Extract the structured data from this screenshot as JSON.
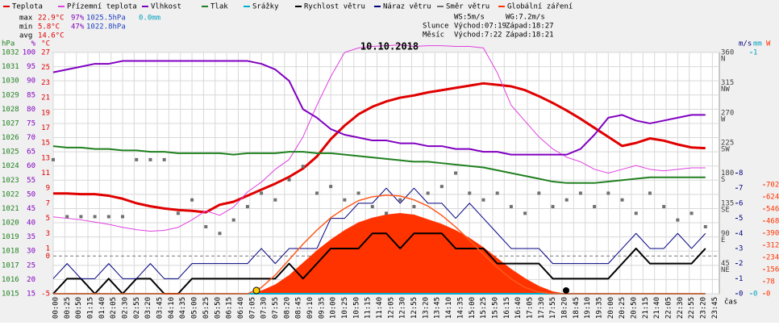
{
  "chart_data": {
    "type": "line",
    "title": "10.10.2018",
    "stats": [
      [
        "max",
        "22.9°C",
        "97%",
        "1025.5hPa",
        "0.0mm"
      ],
      [
        "min",
        "5.8°C",
        "47%",
        "1022.8hPa"
      ],
      [
        "avg",
        "14.6°C"
      ]
    ],
    "wind_stats": [
      "WS:5m/s",
      "WG:7.2m/s"
    ],
    "astro": [
      [
        "Slunce",
        "Východ:07:19",
        "Západ:18:27"
      ],
      [
        "Měsíc",
        "Východ:7:22",
        "Západ:18:21"
      ]
    ],
    "x_label": "čas",
    "xticks": [
      "00:00",
      "00:25",
      "00:50",
      "01:15",
      "01:40",
      "02:05",
      "02:30",
      "02:55",
      "03:20",
      "03:45",
      "04:10",
      "04:35",
      "05:00",
      "05:25",
      "05:50",
      "06:15",
      "06:40",
      "07:05",
      "07:30",
      "07:55",
      "08:20",
      "08:45",
      "09:10",
      "09:35",
      "10:00",
      "10:25",
      "10:50",
      "11:15",
      "11:40",
      "12:05",
      "12:30",
      "12:55",
      "13:20",
      "13:45",
      "14:10",
      "14:35",
      "15:00",
      "15:25",
      "15:50",
      "16:15",
      "16:40",
      "17:05",
      "17:30",
      "17:55",
      "18:20",
      "18:45",
      "19:10",
      "19:35",
      "20:00",
      "20:25",
      "20:50",
      "21:15",
      "21:40",
      "22:05",
      "22:30",
      "22:55",
      "23:20",
      "23:45"
    ],
    "x": [
      "00:00",
      "00:30",
      "01:00",
      "01:30",
      "02:00",
      "02:30",
      "03:00",
      "03:30",
      "04:00",
      "04:30",
      "05:00",
      "05:30",
      "06:00",
      "06:30",
      "07:00",
      "07:30",
      "08:00",
      "08:30",
      "09:00",
      "09:30",
      "10:00",
      "10:30",
      "11:00",
      "11:30",
      "12:00",
      "12:30",
      "13:00",
      "13:30",
      "14:00",
      "14:30",
      "15:00",
      "15:30",
      "16:00",
      "16:30",
      "17:00",
      "17:30",
      "18:00",
      "18:30",
      "19:00",
      "19:30",
      "20:00",
      "20:30",
      "21:00",
      "21:30",
      "22:00",
      "22:30",
      "23:00",
      "23:30"
    ],
    "grid": true,
    "axes": {
      "hPa": {
        "title": "hPa",
        "side": "left",
        "ylim": [
          1015,
          1032
        ],
        "yticks": [
          1032,
          1031,
          1030,
          1029,
          1028,
          1027,
          1026,
          1025,
          1024,
          1023,
          1022,
          1021,
          1020,
          1019,
          1018,
          1017,
          1016,
          1015
        ]
      },
      "pct": {
        "title": "%",
        "side": "left",
        "ylim": [
          15,
          100
        ],
        "yticks": [
          100,
          95,
          90,
          85,
          80,
          75,
          70,
          65,
          60,
          55,
          50,
          45,
          40,
          35,
          30,
          25,
          20,
          15
        ]
      },
      "degC": {
        "title": "°C",
        "side": "left",
        "ylim": [
          -5,
          27
        ],
        "yticks": [
          27,
          25,
          23,
          21,
          19,
          17,
          15,
          13,
          11,
          9,
          7,
          5,
          3,
          1,
          0,
          -5
        ]
      },
      "dir": {
        "side": "right",
        "ylim": [
          0,
          360
        ],
        "yticks": [
          360,
          315,
          270,
          225,
          180,
          135,
          90,
          45
        ],
        "compass": [
          "N",
          "NW",
          "W",
          "SW",
          "S",
          "SE",
          "E",
          "NE"
        ]
      },
      "ms": {
        "title": "m/s",
        "side": "right",
        "ylim": [
          0,
          16
        ],
        "yticks": [
          8,
          7,
          6,
          5,
          4,
          3,
          2,
          1,
          0
        ]
      },
      "mm": {
        "title": "mm",
        "side": "right",
        "ylim": [
          0,
          1
        ],
        "yticks": [
          1,
          0
        ]
      },
      "W": {
        "title": "W",
        "side": "right",
        "ylim": [
          0,
          1555
        ],
        "yticks": [
          702,
          624,
          546,
          468,
          390,
          312,
          234,
          156,
          78,
          0
        ]
      }
    },
    "series": [
      {
        "name": "Teplota",
        "color": "#e00000",
        "axis": "degC",
        "style": "line",
        "width": 3,
        "values": [
          8.3,
          8.3,
          8.2,
          8.2,
          8.0,
          7.6,
          7.0,
          6.6,
          6.3,
          6.1,
          6.0,
          5.8,
          6.8,
          7.2,
          8.0,
          8.8,
          9.6,
          10.5,
          11.6,
          13.2,
          15.5,
          17.3,
          18.8,
          19.8,
          20.5,
          21.0,
          21.3,
          21.7,
          22.0,
          22.3,
          22.6,
          22.9,
          22.7,
          22.5,
          22.0,
          21.2,
          20.3,
          19.3,
          18.2,
          17.0,
          15.8,
          14.6,
          15.0,
          15.6,
          15.3,
          14.8,
          14.4,
          14.3
        ]
      },
      {
        "name": "Přízemní teplota",
        "color": "#e040e0",
        "axis": "degC",
        "style": "line",
        "width": 1,
        "values": [
          5.2,
          5.0,
          4.8,
          4.5,
          4.2,
          3.8,
          3.5,
          3.3,
          3.4,
          3.8,
          4.8,
          6.0,
          5.4,
          6.5,
          8.5,
          9.8,
          11.5,
          12.8,
          15.8,
          20.0,
          23.8,
          27.0,
          27.6,
          27.8,
          27.9,
          28.0,
          27.8,
          27.9,
          27.9,
          27.8,
          27.8,
          27.6,
          24.3,
          20.0,
          17.9,
          15.8,
          14.2,
          13.1,
          12.5,
          11.5,
          11.0,
          11.5,
          12.0,
          11.5,
          11.3,
          11.5,
          11.7,
          11.7
        ]
      },
      {
        "name": "Vlhkost",
        "color": "#8000c0",
        "axis": "pct",
        "style": "line",
        "width": 2,
        "values": [
          93,
          94,
          95,
          96,
          96,
          97,
          97,
          97,
          97,
          97,
          97,
          97,
          97,
          97,
          97,
          96,
          94,
          90,
          80,
          77,
          73,
          71,
          70,
          69,
          69,
          68,
          68,
          67,
          67,
          66,
          66,
          65,
          65,
          64,
          64,
          64,
          64,
          64,
          66,
          71,
          77,
          78,
          76,
          75,
          76,
          77,
          78,
          78
        ]
      },
      {
        "name": "Tlak",
        "color": "#208020",
        "axis": "hPa",
        "style": "line",
        "width": 2,
        "values": [
          1025.4,
          1025.3,
          1025.3,
          1025.2,
          1025.2,
          1025.1,
          1025.1,
          1025.0,
          1025.0,
          1024.9,
          1024.9,
          1024.9,
          1024.9,
          1024.8,
          1024.9,
          1024.9,
          1024.9,
          1025.0,
          1025.0,
          1024.9,
          1024.9,
          1024.8,
          1024.7,
          1024.6,
          1024.5,
          1024.4,
          1024.3,
          1024.3,
          1024.2,
          1024.1,
          1024.0,
          1023.9,
          1023.7,
          1023.5,
          1023.3,
          1023.1,
          1022.9,
          1022.8,
          1022.8,
          1022.8,
          1022.9,
          1023.0,
          1023.1,
          1023.2,
          1023.2,
          1023.2,
          1023.2,
          1023.2
        ]
      },
      {
        "name": "Srážky",
        "color": "#00b0d0",
        "axis": "mm",
        "style": "line",
        "width": 2,
        "values": [
          0,
          0,
          0,
          0,
          0,
          0,
          0,
          0,
          0,
          0,
          0,
          0,
          0,
          0,
          0,
          0,
          0,
          0,
          0,
          0,
          0,
          0,
          0,
          0,
          0,
          0,
          0,
          0,
          0,
          0,
          0,
          0,
          0,
          0,
          0,
          0,
          0,
          0,
          0,
          0,
          0,
          0,
          0,
          0,
          0,
          0,
          0,
          0
        ]
      },
      {
        "name": "Rychlost větru",
        "color": "#000000",
        "axis": "ms",
        "style": "line",
        "width": 2,
        "values": [
          0,
          1,
          1,
          0,
          1,
          0,
          1,
          1,
          0,
          0,
          1,
          1,
          1,
          1,
          1,
          1,
          1,
          2,
          1,
          2,
          3,
          3,
          3,
          4,
          4,
          3,
          4,
          4,
          4,
          3,
          3,
          3,
          2,
          2,
          2,
          2,
          1,
          1,
          1,
          1,
          1,
          2,
          3,
          2,
          2,
          2,
          2,
          3
        ]
      },
      {
        "name": "Náraz větru",
        "color": "#000080",
        "axis": "ms",
        "style": "line",
        "width": 1,
        "values": [
          1,
          2,
          1,
          1,
          2,
          1,
          1,
          2,
          1,
          1,
          2,
          2,
          2,
          2,
          2,
          3,
          2,
          3,
          3,
          3,
          5,
          5,
          6,
          6,
          7,
          6,
          7,
          6,
          6,
          5,
          6,
          5,
          4,
          3,
          3,
          3,
          2,
          2,
          2,
          2,
          2,
          3,
          4,
          3,
          3,
          4,
          3,
          4
        ]
      },
      {
        "name": "Směr větru",
        "color": "#707070",
        "axis": "dir",
        "style": "points",
        "values": [
          200,
          115,
          115,
          115,
          115,
          115,
          200,
          200,
          200,
          120,
          140,
          100,
          90,
          110,
          130,
          150,
          140,
          170,
          190,
          150,
          160,
          140,
          150,
          130,
          120,
          140,
          130,
          150,
          160,
          180,
          150,
          140,
          150,
          130,
          120,
          150,
          130,
          140,
          150,
          130,
          150,
          140,
          120,
          150,
          130,
          110,
          120,
          100
        ]
      },
      {
        "name": "Globální záření",
        "color": "#ff3300",
        "axis": "W",
        "style": "area",
        "values": [
          0,
          0,
          0,
          0,
          0,
          0,
          0,
          0,
          0,
          0,
          0,
          0,
          0,
          0,
          0,
          20,
          60,
          120,
          200,
          280,
          350,
          410,
          460,
          490,
          510,
          520,
          510,
          480,
          450,
          410,
          360,
          300,
          230,
          160,
          100,
          50,
          15,
          0,
          0,
          0,
          0,
          0,
          0,
          0,
          0,
          0,
          0,
          0
        ]
      },
      {
        "color": "#ff5a1e",
        "axis": "W",
        "style": "line",
        "width": 1.5,
        "values": [
          0,
          0,
          0,
          0,
          0,
          0,
          0,
          0,
          0,
          0,
          0,
          0,
          0,
          0,
          0,
          40,
          120,
          220,
          320,
          410,
          490,
          550,
          600,
          625,
          635,
          630,
          605,
          565,
          505,
          430,
          345,
          255,
          170,
          95,
          40,
          10,
          0,
          0,
          0,
          0,
          0,
          0,
          0,
          0,
          0,
          0,
          0,
          0
        ]
      }
    ]
  }
}
